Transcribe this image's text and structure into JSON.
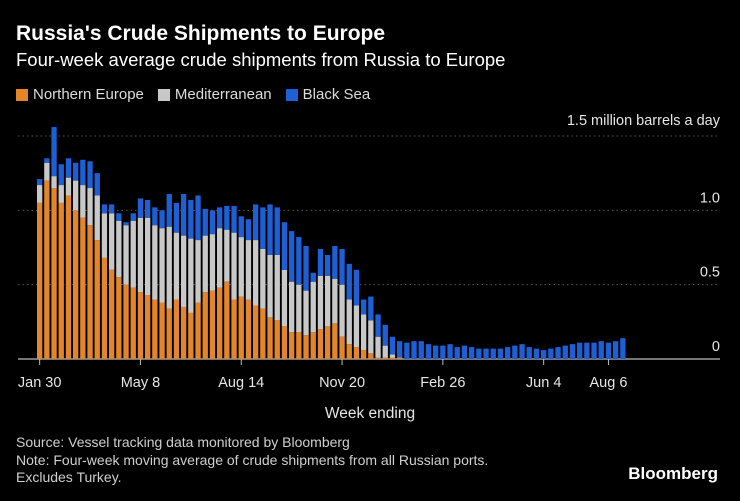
{
  "header": {
    "title": "Russia's Crude Shipments to Europe",
    "subtitle": "Four-week average crude shipments from Russia to Europe"
  },
  "footer": {
    "source": "Source: Vessel tracking data monitored by Bloomberg",
    "note": "Note: Four-week moving average of crude shipments from all Russian ports.",
    "note2": "Excludes Turkey.",
    "brand": "Bloomberg"
  },
  "colors": {
    "northern": "#e3862b",
    "mediterranean": "#c8c8c8",
    "black_sea": "#1f5fd4",
    "grid": "#555555"
  },
  "chart_data": {
    "type": "bar",
    "stacked": true,
    "title": "Russia's Crude Shipments to Europe",
    "subtitle": "Four-week average crude shipments from Russia to Europe",
    "xlabel": "Week ending",
    "ylabel": "1.5 million barrels a day",
    "ylim": [
      0,
      1.5
    ],
    "yticks": [
      0,
      0.5,
      1.0,
      1.5
    ],
    "ytick_labels": [
      "0",
      "0.5",
      "1.0",
      "1.5"
    ],
    "xtick_labels": [
      "Jan 30",
      "May 8",
      "Aug 14",
      "Nov 20",
      "Feb 26",
      "Jun 4",
      "Aug 6"
    ],
    "xtick_indices": [
      0,
      14,
      28,
      42,
      56,
      70,
      79
    ],
    "grid": true,
    "legend_position": "top-left",
    "series": [
      {
        "name": "Northern Europe",
        "values": [
          1.05,
          1.2,
          1.15,
          1.05,
          1.1,
          1.0,
          0.95,
          0.9,
          0.8,
          0.68,
          0.6,
          0.55,
          0.5,
          0.48,
          0.45,
          0.43,
          0.4,
          0.38,
          0.34,
          0.4,
          0.35,
          0.31,
          0.38,
          0.45,
          0.46,
          0.48,
          0.52,
          0.4,
          0.42,
          0.4,
          0.36,
          0.34,
          0.28,
          0.26,
          0.22,
          0.18,
          0.18,
          0.16,
          0.18,
          0.2,
          0.22,
          0.24,
          0.15,
          0.1,
          0.08,
          0.06,
          0.04,
          0.01,
          0.01,
          0.01,
          0.01,
          0.0,
          0.0,
          0.0,
          0.0,
          0.0,
          0.0,
          0.0,
          0.0,
          0.0,
          0.0,
          0.0,
          0.0,
          0.0,
          0.0,
          0.0,
          0.0,
          0.0,
          0.0,
          0.0,
          0.0,
          0.0,
          0.0,
          0.0,
          0.0,
          0.0,
          0.0,
          0.0,
          0.0,
          0.0,
          0.0,
          0.0
        ]
      },
      {
        "name": "Mediterranean",
        "values": [
          0.12,
          0.12,
          0.08,
          0.12,
          0.12,
          0.2,
          0.22,
          0.25,
          0.3,
          0.3,
          0.38,
          0.38,
          0.4,
          0.45,
          0.5,
          0.52,
          0.5,
          0.5,
          0.55,
          0.45,
          0.48,
          0.5,
          0.42,
          0.38,
          0.38,
          0.4,
          0.35,
          0.45,
          0.4,
          0.4,
          0.44,
          0.4,
          0.42,
          0.44,
          0.38,
          0.34,
          0.32,
          0.3,
          0.34,
          0.36,
          0.34,
          0.3,
          0.35,
          0.3,
          0.28,
          0.24,
          0.22,
          0.14,
          0.08,
          0.02,
          0.0,
          0.0,
          0.0,
          0.0,
          0.0,
          0.0,
          0.0,
          0.0,
          0.0,
          0.0,
          0.0,
          0.0,
          0.0,
          0.0,
          0.0,
          0.0,
          0.0,
          0.0,
          0.0,
          0.0,
          0.0,
          0.0,
          0.0,
          0.0,
          0.0,
          0.0,
          0.0,
          0.0,
          0.0,
          0.0,
          0.0,
          0.0
        ]
      },
      {
        "name": "Black Sea",
        "values": [
          0.04,
          0.03,
          0.33,
          0.14,
          0.13,
          0.12,
          0.17,
          0.18,
          0.15,
          0.06,
          0.06,
          0.05,
          0.02,
          0.05,
          0.13,
          0.12,
          0.12,
          0.12,
          0.22,
          0.2,
          0.28,
          0.26,
          0.3,
          0.18,
          0.16,
          0.14,
          0.16,
          0.18,
          0.14,
          0.14,
          0.24,
          0.28,
          0.34,
          0.32,
          0.32,
          0.34,
          0.32,
          0.3,
          0.06,
          0.18,
          0.14,
          0.22,
          0.24,
          0.24,
          0.24,
          0.1,
          0.16,
          0.15,
          0.14,
          0.12,
          0.11,
          0.11,
          0.12,
          0.12,
          0.1,
          0.09,
          0.09,
          0.1,
          0.08,
          0.09,
          0.08,
          0.07,
          0.07,
          0.07,
          0.07,
          0.08,
          0.09,
          0.1,
          0.08,
          0.07,
          0.06,
          0.07,
          0.08,
          0.09,
          0.1,
          0.11,
          0.11,
          0.11,
          0.12,
          0.11,
          0.12,
          0.14
        ]
      }
    ]
  }
}
